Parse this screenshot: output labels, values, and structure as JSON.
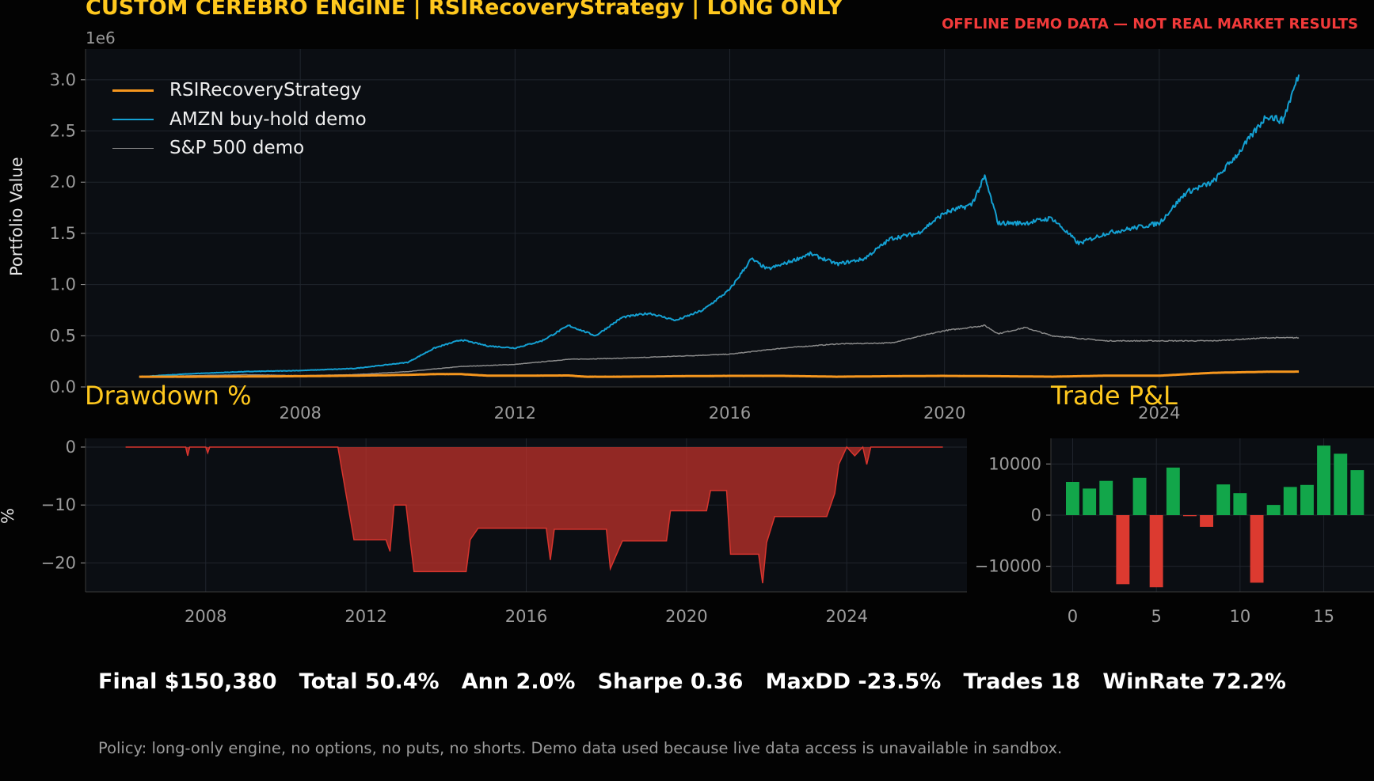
{
  "header": {
    "title": "CUSTOM CEREBRO ENGINE | RSIRecoveryStrategy | LONG ONLY",
    "warning": "OFFLINE DEMO DATA — NOT REAL MARKET RESULTS"
  },
  "colors": {
    "background": "#030303",
    "panel": "#0b0e13",
    "grid": "#20252d",
    "strategy": "#f5961e",
    "amzn": "#14a0d2",
    "sp500": "#8a8a8a",
    "drawdown": "#c0322b",
    "win": "#12a64a",
    "loss": "#dc3a30",
    "accent_title": "#ffc81e",
    "warning": "#f23a3a"
  },
  "chart_data": [
    {
      "type": "line",
      "ylabel": "Portfolio Value",
      "y_scale_label": "1e6",
      "ylim": [
        0,
        3.3
      ],
      "xlim": [
        2004.0,
        2028.0
      ],
      "x_ticks": [
        "2008",
        "2012",
        "2016",
        "2020",
        "2024"
      ],
      "y_ticks": [
        "0.0",
        "0.5",
        "1.0",
        "1.5",
        "2.0",
        "2.5",
        "3.0"
      ],
      "grid": true,
      "legend_position": "top-left",
      "series": [
        {
          "name": "RSIRecoveryStrategy",
          "x": [
            2005.0,
            2006.0,
            2007.0,
            2008.0,
            2009.0,
            2010.0,
            2010.5,
            2011.0,
            2011.5,
            2012.0,
            2013.0,
            2013.3,
            2014.0,
            2015.0,
            2016.0,
            2017.0,
            2018.0,
            2019.0,
            2020.0,
            2021.0,
            2022.0,
            2023.0,
            2024.0,
            2025.0,
            2026.0,
            2026.6
          ],
          "values": [
            0.1,
            0.1,
            0.102,
            0.105,
            0.11,
            0.118,
            0.125,
            0.125,
            0.11,
            0.11,
            0.112,
            0.1,
            0.1,
            0.105,
            0.108,
            0.108,
            0.1,
            0.105,
            0.108,
            0.105,
            0.1,
            0.11,
            0.11,
            0.138,
            0.148,
            0.15
          ]
        },
        {
          "name": "AMZN buy-hold demo",
          "x": [
            2005.0,
            2006.0,
            2007.0,
            2008.0,
            2009.0,
            2010.0,
            2010.5,
            2011.0,
            2011.5,
            2012.0,
            2012.5,
            2013.0,
            2013.5,
            2014.0,
            2014.5,
            2015.0,
            2015.5,
            2016.0,
            2016.4,
            2016.7,
            2017.0,
            2017.5,
            2018.0,
            2018.5,
            2019.0,
            2019.5,
            2020.0,
            2020.5,
            2020.75,
            2021.0,
            2021.5,
            2022.0,
            2022.5,
            2023.0,
            2023.5,
            2024.0,
            2024.5,
            2025.0,
            2025.5,
            2026.0,
            2026.3,
            2026.6
          ],
          "values": [
            0.1,
            0.13,
            0.15,
            0.16,
            0.18,
            0.24,
            0.38,
            0.46,
            0.4,
            0.38,
            0.45,
            0.6,
            0.5,
            0.68,
            0.72,
            0.65,
            0.75,
            0.95,
            1.25,
            1.15,
            1.2,
            1.3,
            1.2,
            1.25,
            1.45,
            1.5,
            1.7,
            1.78,
            2.05,
            1.6,
            1.6,
            1.65,
            1.4,
            1.5,
            1.55,
            1.6,
            1.9,
            2.0,
            2.3,
            2.65,
            2.6,
            3.05
          ]
        },
        {
          "name": "S&P 500 demo",
          "x": [
            2005.0,
            2006.0,
            2007.0,
            2008.0,
            2009.0,
            2010.0,
            2011.0,
            2012.0,
            2013.0,
            2014.0,
            2015.0,
            2016.0,
            2017.0,
            2018.0,
            2019.0,
            2020.0,
            2020.75,
            2021.0,
            2021.5,
            2022.0,
            2023.0,
            2024.0,
            2025.0,
            2026.0,
            2026.6
          ],
          "values": [
            0.1,
            0.11,
            0.12,
            0.11,
            0.12,
            0.15,
            0.2,
            0.22,
            0.27,
            0.28,
            0.3,
            0.32,
            0.38,
            0.42,
            0.43,
            0.55,
            0.6,
            0.52,
            0.58,
            0.5,
            0.45,
            0.45,
            0.45,
            0.48,
            0.48
          ]
        }
      ]
    },
    {
      "type": "area",
      "title": "Drawdown %",
      "ylabel": "%",
      "ylim": [
        -25,
        1.5
      ],
      "xlim": [
        2005.0,
        2027.0
      ],
      "x_ticks": [
        "2008",
        "2012",
        "2016",
        "2020",
        "2024"
      ],
      "y_ticks": [
        "0",
        "−10",
        "−20"
      ],
      "grid": true,
      "x": [
        2006.0,
        2007.5,
        2007.55,
        2007.6,
        2008.0,
        2008.05,
        2008.1,
        2009.5,
        2011.0,
        2011.3,
        2011.5,
        2011.6,
        2011.7,
        2012.5,
        2012.6,
        2012.7,
        2013.0,
        2013.1,
        2013.2,
        2013.4,
        2014.5,
        2014.6,
        2014.8,
        2016.0,
        2016.5,
        2016.6,
        2016.7,
        2017.0,
        2017.5,
        2018.0,
        2018.1,
        2018.4,
        2018.5,
        2019.5,
        2019.6,
        2020.0,
        2020.5,
        2020.6,
        2021.0,
        2021.1,
        2021.5,
        2021.8,
        2021.9,
        2022.0,
        2022.2,
        2023.0,
        2023.5,
        2023.7,
        2023.8,
        2024.0,
        2024.2,
        2024.4,
        2024.5,
        2024.6,
        2025.0,
        2026.4
      ],
      "values": [
        0,
        0,
        -1.5,
        0,
        0,
        -1,
        0,
        0,
        0,
        0,
        -8,
        -12,
        -16,
        -16,
        -18,
        -10,
        -10,
        -16,
        -21.5,
        -21.5,
        -21.5,
        -16,
        -14,
        -14,
        -14,
        -19.5,
        -14.2,
        -14.2,
        -14.2,
        -14.2,
        -21,
        -16.2,
        -16.2,
        -16.2,
        -11,
        -11,
        -11,
        -7.5,
        -7.5,
        -18.5,
        -18.5,
        -18.5,
        -23.5,
        -16.5,
        -12,
        -12,
        -12,
        -8,
        -3,
        0,
        -1.5,
        0,
        -3,
        0,
        0,
        0
      ]
    },
    {
      "type": "bar",
      "title": "Trade P&L",
      "ylim": [
        -15000,
        15000
      ],
      "xlim": [
        -1.3,
        18.0
      ],
      "x_ticks": [
        "0",
        "5",
        "10",
        "15"
      ],
      "y_ticks": [
        "10000",
        "0",
        "−10000"
      ],
      "grid": true,
      "categories": [
        0,
        1,
        2,
        3,
        4,
        5,
        6,
        7,
        8,
        9,
        10,
        11,
        12,
        13,
        14,
        15,
        16,
        17
      ],
      "values": [
        6500,
        5200,
        6700,
        -13500,
        7300,
        -14100,
        9300,
        -200,
        -2300,
        6000,
        4300,
        -13200,
        2000,
        5500,
        5900,
        13600,
        12000,
        8800
      ]
    }
  ],
  "footer": {
    "metrics": "Final $150,380   Total 50.4%   Ann 2.0%   Sharpe 0.36   MaxDD -23.5%   Trades 18   WinRate 72.2%",
    "policy": "Policy: long-only engine, no options, no puts, no shorts. Demo data used because live data access is unavailable in sandbox."
  }
}
